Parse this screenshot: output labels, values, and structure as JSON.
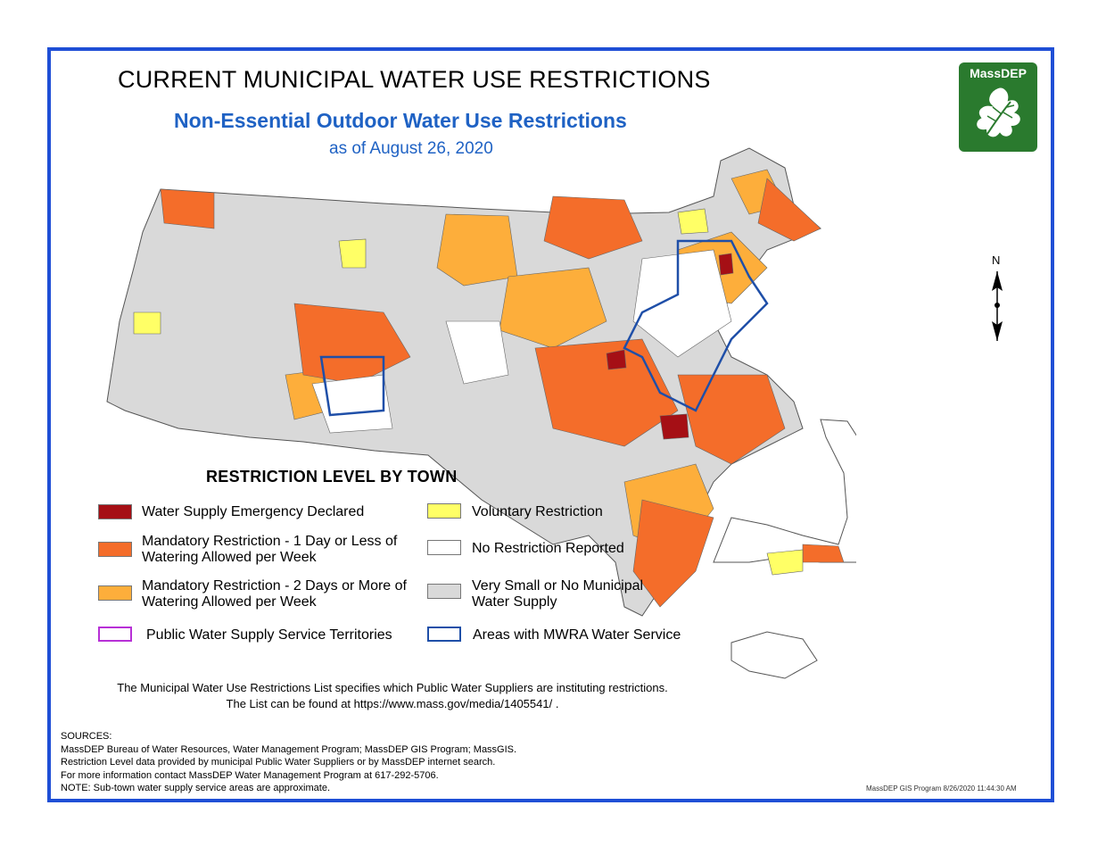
{
  "title": "CURRENT MUNICIPAL WATER USE RESTRICTIONS",
  "subtitle": "Non-Essential Outdoor Water Use Restrictions",
  "date": "as of August 26, 2020",
  "logo": {
    "text": "MassDEP",
    "icon": "oak-leaf-icon",
    "color": "#2a7a2e"
  },
  "north_label": "N",
  "legend": {
    "title": "RESTRICTION LEVEL BY TOWN",
    "items": [
      {
        "key": "emergency",
        "label": "Water Supply Emergency Declared",
        "color": "#a50f15"
      },
      {
        "key": "mandatory1",
        "label": "Mandatory Restriction - 1 Day or Less of Watering Allowed per Week",
        "color": "#f46d2a"
      },
      {
        "key": "mandatory2",
        "label": "Mandatory Restriction - 2 Days or More of Watering Allowed per Week",
        "color": "#fdae3b"
      },
      {
        "key": "pws",
        "label": "Public Water Supply Service Territories",
        "color": "#b730d6"
      },
      {
        "key": "voluntary",
        "label": "Voluntary Restriction",
        "color": "#ffff66"
      },
      {
        "key": "none",
        "label": "No Restriction Reported",
        "color": "#ffffff"
      },
      {
        "key": "small",
        "label": "Very Small or No Municipal Water Supply",
        "color": "#d9d9d9"
      },
      {
        "key": "mwra",
        "label": "Areas with MWRA Water Service",
        "color": "#1f4fa8"
      }
    ]
  },
  "note_line1": "The Municipal Water Use Restrictions List specifies which Public Water Suppliers are instituting restrictions.",
  "note_line2": "The List can be found at https://www.mass.gov/media/1405541/ .",
  "sources": [
    "SOURCES:",
    "MassDEP Bureau of Water Resources, Water Management Program; MassDEP GIS Program; MassGIS.",
    "Restriction Level data provided by municipal Public Water Suppliers or by MassDEP internet search.",
    "For more information contact MassDEP Water Management Program at 617-292-5706.",
    "NOTE: Sub-town water supply service areas are approximate."
  ],
  "stamp": "MassDEP GIS Program 8/26/2020 11:44:30 AM",
  "colors": {
    "border": "#1f4fd6",
    "heading_blue": "#1f62c4"
  }
}
